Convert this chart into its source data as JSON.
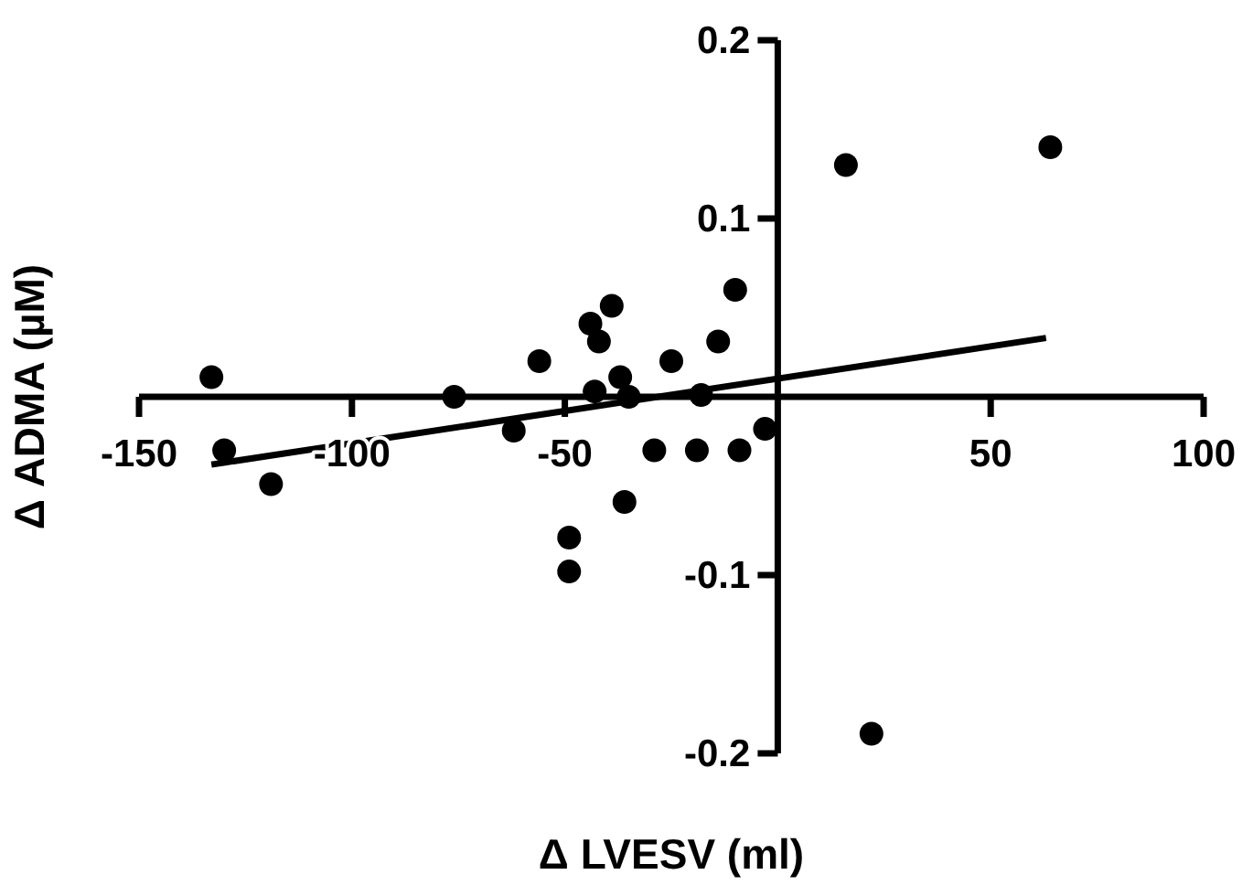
{
  "chart_data": {
    "type": "scatter",
    "xlabel": "Δ LVESV (ml)",
    "ylabel": "Δ ADMA (µM)",
    "xlim": [
      -150,
      100
    ],
    "xticks": [
      -150,
      -100,
      -50,
      50,
      100
    ],
    "ylim": [
      -0.2,
      0.2
    ],
    "yticks": [
      -0.2,
      -0.1,
      0.1,
      0.2
    ],
    "grid": false,
    "marker": "circle",
    "series": [
      {
        "color": "#000000",
        "x": [
          -133,
          -130,
          -119,
          -76,
          -62,
          -56,
          -39,
          -44,
          -42,
          -43,
          -37,
          -35,
          -25,
          -18,
          -14,
          -29,
          -19,
          -36,
          -49,
          -49,
          -10,
          -9,
          -3,
          16,
          64,
          22
        ],
        "values": [
          0.011,
          -0.03,
          -0.049,
          0.0,
          -0.019,
          0.02,
          0.051,
          0.041,
          0.031,
          0.003,
          0.011,
          0.0,
          0.02,
          0.001,
          0.031,
          -0.03,
          -0.03,
          -0.059,
          -0.079,
          -0.098,
          0.06,
          -0.03,
          -0.018,
          0.13,
          0.14,
          -0.189
        ]
      },
      {
        "type": "line",
        "color": "#000000",
        "marker": "none",
        "line_style": "solid",
        "x": [
          -133,
          63
        ],
        "values": [
          -0.038,
          0.033
        ]
      }
    ]
  }
}
